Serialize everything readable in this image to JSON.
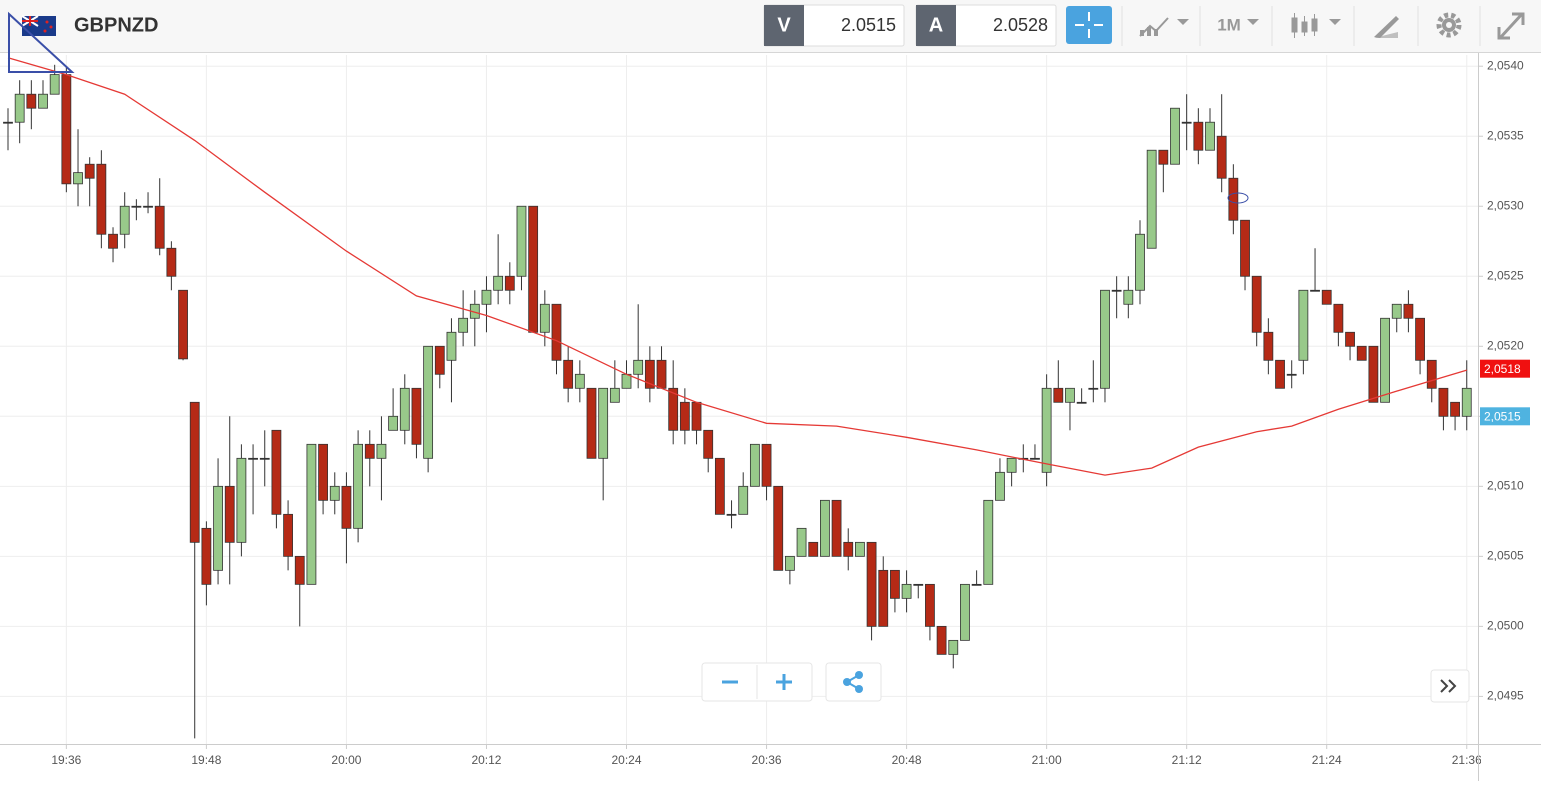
{
  "header": {
    "symbol": "GBPNZD",
    "bid_label": "V",
    "bid": "2.0515",
    "ask_label": "A",
    "ask": "2.0528",
    "timeframe": "1M"
  },
  "chart_data": {
    "type": "candlestick",
    "x": [
      "19:31",
      "19:32",
      "19:33",
      "19:34",
      "19:35",
      "19:36",
      "19:37",
      "19:38",
      "19:39",
      "19:40",
      "19:41",
      "19:42",
      "19:43",
      "19:44",
      "19:45",
      "19:46",
      "19:47",
      "19:48",
      "19:49",
      "19:50",
      "19:51",
      "19:52",
      "19:53",
      "19:54",
      "19:55",
      "19:56",
      "19:57",
      "19:58",
      "19:59",
      "20:00",
      "20:01",
      "20:02",
      "20:03",
      "20:04",
      "20:05",
      "20:06",
      "20:07",
      "20:08",
      "20:09",
      "20:10",
      "20:11",
      "20:12",
      "20:13",
      "20:14",
      "20:15",
      "20:16",
      "20:17",
      "20:18",
      "20:19",
      "20:20",
      "20:21",
      "20:22",
      "20:23",
      "20:24",
      "20:25",
      "20:26",
      "20:27",
      "20:28",
      "20:29",
      "20:30",
      "20:31",
      "20:32",
      "20:33",
      "20:34",
      "20:35",
      "20:36",
      "20:37",
      "20:38",
      "20:39",
      "20:40",
      "20:41",
      "20:42",
      "20:43",
      "20:44",
      "20:45",
      "20:46",
      "20:47",
      "20:48",
      "20:49",
      "20:50",
      "20:51",
      "20:52",
      "20:53",
      "20:54",
      "20:55",
      "20:56",
      "20:57",
      "20:58",
      "20:59",
      "21:00",
      "21:01",
      "21:02",
      "21:03",
      "21:04",
      "21:05",
      "21:06",
      "21:07",
      "21:08",
      "21:09",
      "21:10",
      "21:11",
      "21:12",
      "21:13",
      "21:14",
      "21:15",
      "21:16",
      "21:17",
      "21:18",
      "21:19",
      "21:20",
      "21:21",
      "21:22",
      "21:23",
      "21:24",
      "21:25",
      "21:26",
      "21:27",
      "21:28",
      "21:29",
      "21:30",
      "21:31",
      "21:32",
      "21:33",
      "21:34",
      "21:35",
      "21:36"
    ],
    "open": [
      2.0536,
      2.0536,
      2.0538,
      2.0537,
      2.0538,
      2.05394,
      2.05316,
      2.0533,
      2.0533,
      2.0528,
      2.0528,
      2.053,
      2.053,
      2.053,
      2.0527,
      2.0524,
      2.0516,
      2.0507,
      2.0504,
      2.051,
      2.0506,
      2.0512,
      2.0512,
      2.0514,
      2.0508,
      2.0505,
      2.0503,
      2.0513,
      2.0509,
      2.051,
      2.0507,
      2.0513,
      2.0512,
      2.0514,
      2.0514,
      2.0517,
      2.0512,
      2.052,
      2.0519,
      2.0521,
      2.0522,
      2.0523,
      2.0524,
      2.0525,
      2.0525,
      2.053,
      2.0521,
      2.0523,
      2.0519,
      2.0517,
      2.0517,
      2.0512,
      2.0516,
      2.0517,
      2.0518,
      2.0519,
      2.0519,
      2.0517,
      2.0516,
      2.0516,
      2.0514,
      2.0512,
      2.0508,
      2.0508,
      2.051,
      2.0513,
      2.051,
      2.0504,
      2.0505,
      2.0506,
      2.0505,
      2.0509,
      2.0506,
      2.0505,
      2.0506,
      2.0504,
      2.0504,
      2.0502,
      2.0503,
      2.0503,
      2.05,
      2.0498,
      2.0499,
      2.0503,
      2.0503,
      2.0509,
      2.0511,
      2.0512,
      2.0512,
      2.0511,
      2.0517,
      2.0516,
      2.0516,
      2.0517,
      2.0517,
      2.0524,
      2.0523,
      2.0524,
      2.0527,
      2.0534,
      2.0533,
      2.0536,
      2.0536,
      2.0534,
      2.0535,
      2.0532,
      2.0529,
      2.0525,
      2.0521,
      2.0519,
      2.0518,
      2.0519,
      2.0524,
      2.0524,
      2.0523,
      2.0521,
      2.052,
      2.052,
      2.0516,
      2.0522,
      2.0523,
      2.0522,
      2.0519,
      2.0517,
      2.0516,
      2.0515
    ],
    "high": [
      2.0537,
      2.0539,
      2.0539,
      2.0539,
      2.05401,
      2.054,
      2.05355,
      2.05335,
      2.0534,
      2.05285,
      2.0531,
      2.05305,
      2.0531,
      2.0532,
      2.05275,
      2.0524,
      2.0516,
      2.05075,
      2.0512,
      2.0515,
      2.0513,
      2.0513,
      2.0514,
      2.0514,
      2.0509,
      2.0505,
      2.0513,
      2.0513,
      2.0511,
      2.0511,
      2.0514,
      2.0514,
      2.0515,
      2.0517,
      2.0518,
      2.0517,
      2.052,
      2.052,
      2.0522,
      2.0524,
      2.0524,
      2.0525,
      2.0528,
      2.0526,
      2.053,
      2.053,
      2.0524,
      2.0523,
      2.052,
      2.0519,
      2.0517,
      2.0517,
      2.0519,
      2.0519,
      2.0523,
      2.052,
      2.052,
      2.0519,
      2.0517,
      2.0516,
      2.0514,
      2.0512,
      2.0509,
      2.0511,
      2.0513,
      2.0513,
      2.051,
      2.0505,
      2.0507,
      2.0506,
      2.0509,
      2.0509,
      2.0507,
      2.0506,
      2.0506,
      2.0505,
      2.0504,
      2.0504,
      2.0503,
      2.0503,
      2.05,
      2.0499,
      2.0503,
      2.0504,
      2.0509,
      2.0512,
      2.0512,
      2.0513,
      2.0513,
      2.0518,
      2.0519,
      2.0517,
      2.0517,
      2.0519,
      2.0524,
      2.0525,
      2.0525,
      2.0529,
      2.0534,
      2.0534,
      2.0537,
      2.0538,
      2.0537,
      2.0537,
      2.0538,
      2.0533,
      2.0529,
      2.0525,
      2.0522,
      2.0519,
      2.0519,
      2.0524,
      2.0527,
      2.0524,
      2.0523,
      2.0521,
      2.052,
      2.052,
      2.0522,
      2.0523,
      2.0524,
      2.0522,
      2.0519,
      2.0517,
      2.0516,
      2.0519
    ],
    "low": [
      2.0534,
      2.05345,
      2.05355,
      2.0537,
      2.0538,
      2.0531,
      2.053,
      2.053,
      2.0527,
      2.0526,
      2.0527,
      2.0529,
      2.05295,
      2.05265,
      2.0524,
      2.0519,
      2.0492,
      2.05015,
      2.0503,
      2.0503,
      2.0505,
      2.0508,
      2.051,
      2.0507,
      2.0504,
      2.05,
      2.0503,
      2.0508,
      2.0508,
      2.05045,
      2.0506,
      2.051,
      2.0509,
      2.0514,
      2.0513,
      2.0512,
      2.0511,
      2.0517,
      2.0516,
      2.052,
      2.052,
      2.0521,
      2.0523,
      2.0523,
      2.0524,
      2.0521,
      2.052,
      2.0518,
      2.0516,
      2.0516,
      2.0512,
      2.0509,
      2.0516,
      2.0517,
      2.0517,
      2.0516,
      2.0517,
      2.0513,
      2.0513,
      2.0513,
      2.0511,
      2.0508,
      2.0507,
      2.0508,
      2.051,
      2.0509,
      2.0504,
      2.0503,
      2.0505,
      2.0505,
      2.0505,
      2.0505,
      2.0504,
      2.0505,
      2.0499,
      2.05,
      2.0501,
      2.0501,
      2.0502,
      2.0499,
      2.0498,
      2.0497,
      2.0499,
      2.0503,
      2.0503,
      2.0509,
      2.051,
      2.0511,
      2.0512,
      2.051,
      2.0516,
      2.0514,
      2.0516,
      2.0516,
      2.0516,
      2.0522,
      2.0522,
      2.0523,
      2.0527,
      2.0531,
      2.0533,
      2.0534,
      2.0533,
      2.0534,
      2.0531,
      2.0528,
      2.0524,
      2.052,
      2.0518,
      2.0517,
      2.0517,
      2.0518,
      2.0524,
      2.0523,
      2.052,
      2.0519,
      2.0519,
      2.0516,
      2.0516,
      2.0521,
      2.0521,
      2.0518,
      2.0516,
      2.0514,
      2.0514,
      2.0514
    ],
    "close": [
      2.0536,
      2.0538,
      2.0537,
      2.0538,
      2.05394,
      2.05316,
      2.05324,
      2.0532,
      2.0528,
      2.0527,
      2.053,
      2.053,
      2.053,
      2.0527,
      2.0525,
      2.05191,
      2.0506,
      2.0503,
      2.051,
      2.0506,
      2.0512,
      2.0512,
      2.0512,
      2.0508,
      2.0505,
      2.0503,
      2.0513,
      2.0509,
      2.051,
      2.0507,
      2.0513,
      2.0512,
      2.0513,
      2.0515,
      2.0517,
      2.0513,
      2.052,
      2.0518,
      2.0521,
      2.0522,
      2.0523,
      2.0524,
      2.0525,
      2.0524,
      2.053,
      2.0521,
      2.0523,
      2.0519,
      2.0517,
      2.0518,
      2.0512,
      2.0517,
      2.0517,
      2.0518,
      2.0519,
      2.0517,
      2.0517,
      2.0514,
      2.0514,
      2.0514,
      2.0512,
      2.0508,
      2.0508,
      2.051,
      2.0513,
      2.051,
      2.0504,
      2.0505,
      2.0507,
      2.0505,
      2.0509,
      2.0505,
      2.0505,
      2.0506,
      2.05,
      2.05,
      2.0502,
      2.0503,
      2.0503,
      2.05,
      2.0498,
      2.0499,
      2.0503,
      2.0503,
      2.0509,
      2.0511,
      2.0512,
      2.0512,
      2.0512,
      2.0517,
      2.0516,
      2.0517,
      2.0516,
      2.0517,
      2.0524,
      2.0524,
      2.0524,
      2.0528,
      2.0534,
      2.0533,
      2.0537,
      2.0536,
      2.0534,
      2.0536,
      2.0532,
      2.0529,
      2.0525,
      2.0521,
      2.0519,
      2.0517,
      2.0518,
      2.0524,
      2.0524,
      2.0523,
      2.0521,
      2.052,
      2.0519,
      2.0516,
      2.0522,
      2.0523,
      2.0522,
      2.0519,
      2.0517,
      2.0515,
      2.0515,
      2.0517
    ],
    "up_color": "#98c98a",
    "down_color": "#b52a16",
    "moving_average": {
      "color": "#e53935",
      "x": [
        "19:31",
        "19:36",
        "19:41",
        "19:47",
        "19:53",
        "20:00",
        "20:06",
        "20:12",
        "20:18",
        "20:24",
        "20:30",
        "20:36",
        "20:42",
        "20:48",
        "20:54",
        "21:00",
        "21:05",
        "21:09",
        "21:13",
        "21:18",
        "21:21",
        "21:25",
        "21:30",
        "21:36"
      ],
      "values": [
        2.05406,
        2.05394,
        2.0538,
        2.05347,
        2.0531,
        2.05268,
        2.05236,
        2.05222,
        2.05204,
        2.0518,
        2.0516,
        2.05145,
        2.05143,
        2.05135,
        2.05126,
        2.05116,
        2.05108,
        2.05113,
        2.05128,
        2.05139,
        2.05143,
        2.05155,
        2.05168,
        2.05183
      ]
    },
    "price_tags": [
      {
        "label": "2,0518",
        "value": 2.05184,
        "color": "#f01010"
      },
      {
        "label": "2,0515",
        "value": 2.0515,
        "color": "#4fb3e0"
      }
    ],
    "ylim": [
      2.04916,
      2.05408
    ],
    "yticks": [
      {
        "value": 2.0495,
        "label": "2,0495"
      },
      {
        "value": 2.05,
        "label": "2,0500"
      },
      {
        "value": 2.0505,
        "label": "2,0505"
      },
      {
        "value": 2.051,
        "label": "2,0510"
      },
      {
        "value": 2.0515,
        "label": "2,0515"
      },
      {
        "value": 2.052,
        "label": "2,0520"
      },
      {
        "value": 2.0525,
        "label": "2,0525"
      },
      {
        "value": 2.053,
        "label": "2,0530"
      },
      {
        "value": 2.0535,
        "label": "2,0535"
      },
      {
        "value": 2.054,
        "label": "2,0540"
      }
    ],
    "xticks": [
      "19:36",
      "19:48",
      "20:00",
      "20:12",
      "20:24",
      "20:36",
      "20:48",
      "21:00",
      "21:12",
      "21:24",
      "21:36"
    ],
    "grid": true
  }
}
